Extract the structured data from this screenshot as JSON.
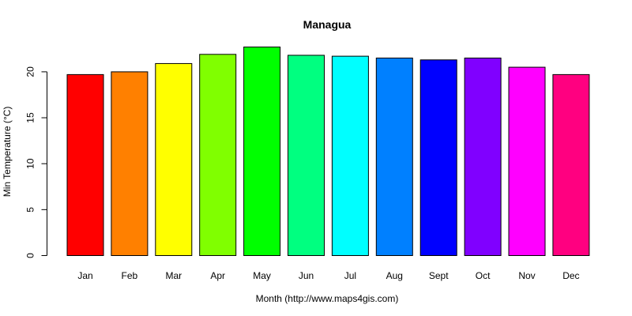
{
  "chart_data": {
    "type": "bar",
    "title": "Managua",
    "xlabel": "Month (http://www.maps4gis.com)",
    "ylabel": "Min Temperature (°C)",
    "categories": [
      "Jan",
      "Feb",
      "Mar",
      "Apr",
      "May",
      "Jun",
      "Jul",
      "Aug",
      "Sept",
      "Oct",
      "Nov",
      "Dec"
    ],
    "values": [
      19.7,
      20.0,
      20.9,
      21.9,
      22.7,
      21.8,
      21.7,
      21.5,
      21.3,
      21.5,
      20.5,
      19.7
    ],
    "colors": [
      "#ff0000",
      "#ff8000",
      "#ffff00",
      "#80ff00",
      "#00ff00",
      "#00ff80",
      "#00ffff",
      "#0080ff",
      "#0000ff",
      "#8000ff",
      "#ff00ff",
      "#ff0080"
    ],
    "yticks": [
      0,
      5,
      10,
      15,
      20
    ],
    "ylim": [
      0,
      22.7
    ],
    "grid": false,
    "legend": "none"
  }
}
